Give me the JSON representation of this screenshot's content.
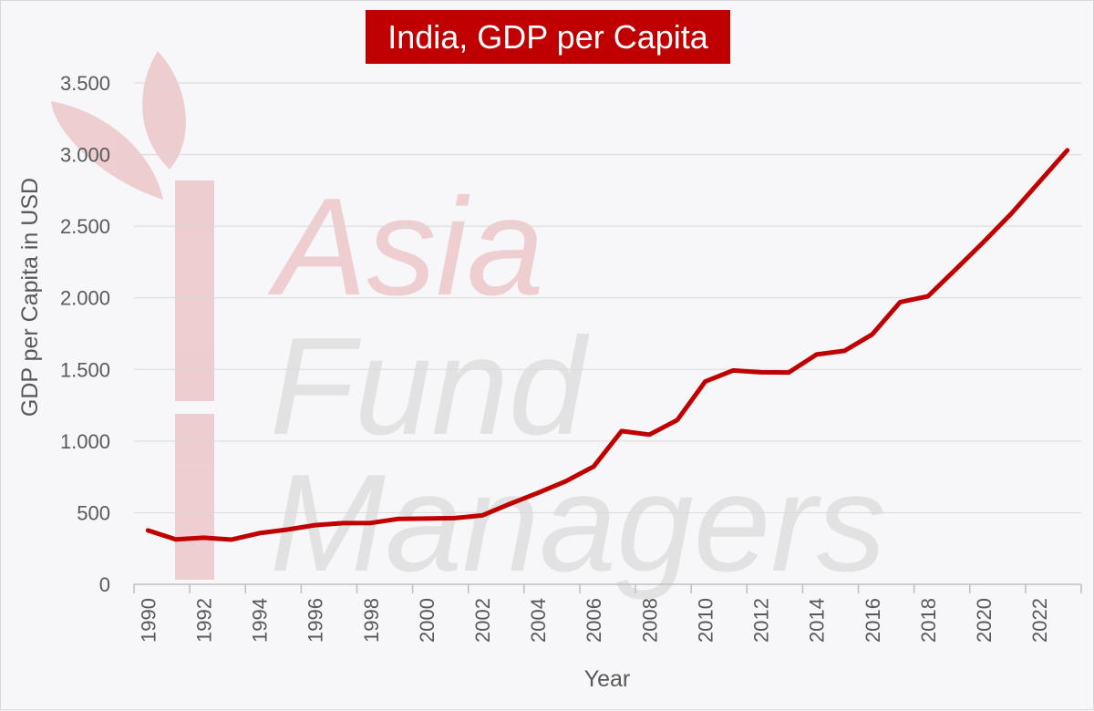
{
  "title": "India, GDP per Capita",
  "watermark": {
    "line1": "Asia",
    "line2": "Fund",
    "line3": "Managers"
  },
  "colors": {
    "series": "#c00000",
    "title_bg": "#c00000",
    "grid": "#d9d9d9",
    "background": "#f7f6f8"
  },
  "chart_data": {
    "type": "line",
    "title": "India, GDP per Capita",
    "xlabel": "Year",
    "ylabel": "GDP per Capita in USD",
    "x": [
      1990,
      1991,
      1992,
      1993,
      1994,
      1995,
      1996,
      1997,
      1998,
      1999,
      2000,
      2001,
      2002,
      2003,
      2004,
      2005,
      2006,
      2007,
      2008,
      2009,
      2010,
      2011,
      2012,
      2013,
      2014,
      2015,
      2016,
      2017,
      2018,
      2019,
      2020,
      2021,
      2022,
      2023
    ],
    "series": [
      {
        "name": "",
        "values": [
          376,
          313,
          325,
          312,
          357,
          382,
          413,
          427,
          428,
          457,
          459,
          462,
          481,
          562,
          638,
          720,
          822,
          1070,
          1045,
          1147,
          1415,
          1493,
          1480,
          1479,
          1604,
          1630,
          1745,
          1970,
          2011,
          2200,
          2390,
          2590,
          2810,
          3030
        ]
      }
    ],
    "ylim": [
      0,
      3500
    ],
    "yticks": [
      0,
      500,
      1000,
      1500,
      2000,
      2500,
      3000,
      3500
    ],
    "ytick_labels": [
      "0",
      "500",
      "1.000",
      "1.500",
      "2.000",
      "2.500",
      "3.000",
      "3.500"
    ],
    "xticks": [
      1990,
      1992,
      1994,
      1996,
      1998,
      2000,
      2002,
      2004,
      2006,
      2008,
      2010,
      2012,
      2014,
      2016,
      2018,
      2020,
      2022
    ],
    "grid": true,
    "legend": "none"
  }
}
